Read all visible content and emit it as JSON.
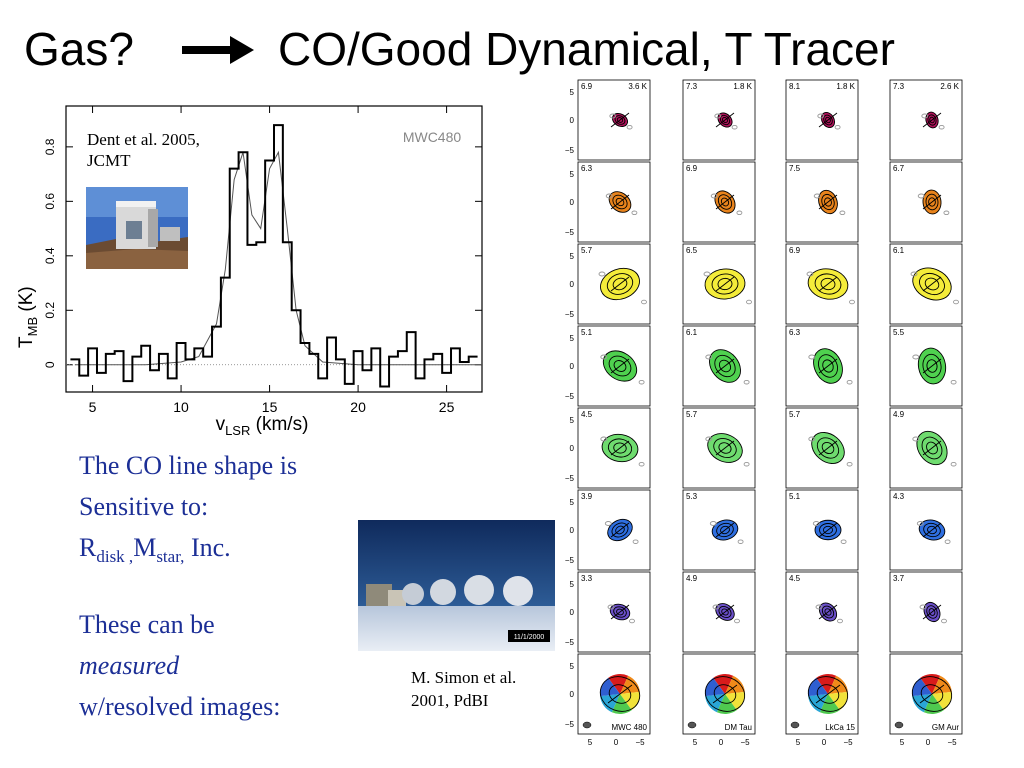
{
  "slide": {
    "title_left": "Gas?",
    "title_right": "CO/Good Dynamical, T Tracer"
  },
  "spectrum": {
    "caption_line1": "Dent et al. 2005,",
    "caption_line2": "JCMT",
    "source_label": "MWC480",
    "chart_data": {
      "type": "line",
      "title": "MWC480",
      "xlabel": "vLSR (km/s)",
      "ylabel": "TMB (K)",
      "xlim": [
        3.5,
        27
      ],
      "ylim": [
        -0.1,
        0.95
      ],
      "x_ticks": [
        5,
        10,
        15,
        20,
        25
      ],
      "y_ticks": [
        0,
        0.2,
        0.4,
        0.6,
        0.8
      ],
      "series": [
        {
          "style": "histogram",
          "x": [
            4,
            4.5,
            5,
            5.5,
            6,
            6.5,
            7,
            7.5,
            8,
            8.5,
            9,
            9.5,
            10,
            10.5,
            11,
            11.5,
            12,
            12.5,
            13,
            13.5,
            14,
            14.5,
            15,
            15.5,
            16,
            16.5,
            17,
            17.5,
            18,
            18.5,
            19,
            19.5,
            20,
            20.5,
            21,
            21.5,
            22,
            22.5,
            23,
            23.5,
            24,
            24.5,
            25,
            25.5,
            26,
            26.5
          ],
          "y": [
            0.02,
            -0.04,
            0.06,
            -0.03,
            0.04,
            0.05,
            -0.06,
            0.03,
            0.07,
            -0.02,
            0.04,
            -0.05,
            0.08,
            0.02,
            0.06,
            0.03,
            0.14,
            0.32,
            0.72,
            0.78,
            0.44,
            0.45,
            0.75,
            0.88,
            0.45,
            0.2,
            0.08,
            0.04,
            -0.05,
            0.1,
            0.02,
            -0.07,
            0.05,
            -0.02,
            0.06,
            -0.08,
            0.03,
            0.05,
            0.12,
            -0.05,
            0.02,
            0.04,
            -0.03,
            0.06,
            0.01,
            0.03
          ]
        },
        {
          "style": "model",
          "x": [
            4,
            6,
            8,
            10,
            11,
            12,
            12.5,
            13,
            13.5,
            14,
            14.5,
            15,
            15.5,
            16,
            16.5,
            17,
            18,
            20,
            22,
            24,
            26,
            27
          ],
          "y": [
            0,
            0,
            0,
            0.01,
            0.03,
            0.15,
            0.35,
            0.68,
            0.78,
            0.55,
            0.5,
            0.72,
            0.78,
            0.5,
            0.2,
            0.07,
            0.01,
            0,
            0,
            0,
            0,
            0
          ]
        }
      ]
    }
  },
  "text": {
    "l1": "The CO line shape is",
    "l2": "Sensitive to:",
    "r_main": "R",
    "r_sub": "disk ,",
    "m_main": "M",
    "m_sub": "star,",
    "inc": " Inc.",
    "l4": "These can be",
    "l5": "measured",
    "l6": "w/resolved images:"
  },
  "photo2": {
    "caption_line1": "M. Simon et al.",
    "caption_line2": "2001, PdBI",
    "date_stamp": "11/1/2000"
  },
  "channel_maps": {
    "axis_ticks": [
      "5",
      "0",
      "−5"
    ],
    "sources": [
      "MWC 480",
      "DM Tau",
      "LkCa 15",
      "GM Aur"
    ],
    "peak_labels": [
      "3.6 K",
      "1.8 K",
      "1.8 K",
      "2.6 K"
    ],
    "velocities": [
      [
        "6.9",
        "7.3",
        "8.1",
        "7.3"
      ],
      [
        "6.3",
        "6.9",
        "7.5",
        "6.7"
      ],
      [
        "5.7",
        "6.5",
        "6.9",
        "6.1"
      ],
      [
        "5.1",
        "6.1",
        "6.3",
        "5.5"
      ],
      [
        "4.5",
        "5.7",
        "5.7",
        "4.9"
      ],
      [
        "3.9",
        "5.3",
        "5.1",
        "4.3"
      ],
      [
        "3.3",
        "4.9",
        "4.5",
        "3.7"
      ]
    ],
    "row_colors": [
      "#b0125a",
      "#e8831c",
      "#f4ec3a",
      "#4fd14f",
      "#6fdc6f",
      "#2f6fe0",
      "#6a4fc8"
    ]
  }
}
